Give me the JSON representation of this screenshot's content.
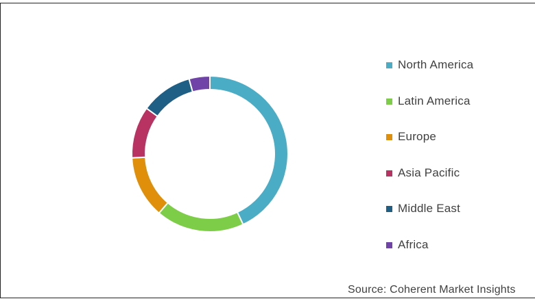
{
  "chart_data": {
    "type": "pie",
    "variant": "donut",
    "title": "",
    "categories": [
      "North America",
      "Latin America",
      "Europe",
      "Asia Pacific",
      "Middle East",
      "Africa"
    ],
    "values": [
      40,
      17,
      12,
      10,
      10,
      4
    ],
    "colors": [
      "#4BACC6",
      "#7DCD48",
      "#E08F0B",
      "#B83361",
      "#1F5F86",
      "#6F43A7"
    ],
    "legend_position": "right",
    "source": "Source: Coherent Market Insights"
  }
}
